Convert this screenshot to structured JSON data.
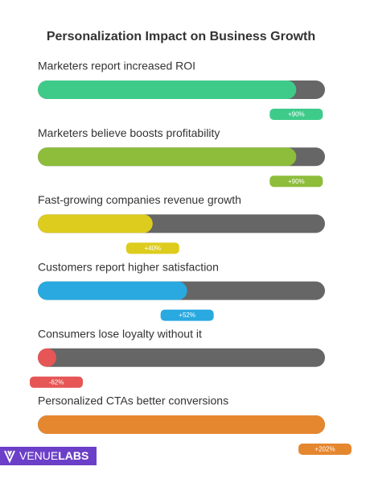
{
  "chart_data": {
    "type": "bar",
    "title": "Personalization Impact on Business Growth",
    "categories": [
      "Marketers report increased ROI",
      "Marketers believe boosts profitability",
      "Fast-growing companies revenue growth",
      "Customers report higher satisfaction",
      "Consumers lose loyalty without it",
      "Personalized CTAs better conversions"
    ],
    "values": [
      90,
      90,
      40,
      52,
      -62,
      202
    ],
    "value_labels": [
      "+90%",
      "+90%",
      "+40%",
      "+52%",
      "-62%",
      "+202%"
    ],
    "colors": [
      "#3ecb8a",
      "#8dbd3a",
      "#ddcc1e",
      "#29a9e0",
      "#e65656",
      "#e5872f"
    ],
    "track_color": "#666666",
    "xlim": [
      0,
      100
    ]
  },
  "logo": {
    "text": [
      "VENUE",
      "LABS"
    ]
  }
}
